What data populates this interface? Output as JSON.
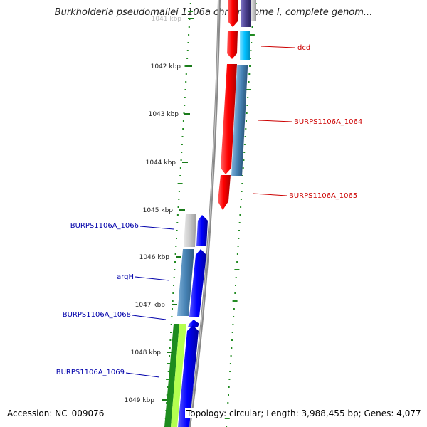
{
  "title": "Burkholderia pseudomallei 1106a chromosome I, complete genom...",
  "footer": {
    "accession": "Accession: NC_009076",
    "topology": "Topology: circular; Length: 3,988,455 bp; Genes: 4,077"
  },
  "ticks": [
    {
      "label": "1041 kbp"
    },
    {
      "label": "1042 kbp"
    },
    {
      "label": "1043 kbp"
    },
    {
      "label": "1044 kbp"
    },
    {
      "label": "1045 kbp"
    },
    {
      "label": "1046 kbp"
    },
    {
      "label": "1047 kbp"
    },
    {
      "label": "1048 kbp"
    },
    {
      "label": "1049 kbp"
    }
  ],
  "gene_labels": [
    {
      "name": "dcd",
      "color": "#cc0000"
    },
    {
      "name": "BURPS1106A_1064",
      "color": "#cc0000"
    },
    {
      "name": "BURPS1106A_1065",
      "color": "#cc0000"
    },
    {
      "name": "BURPS1106A_1066",
      "color": "#0000aa"
    },
    {
      "name": "argH",
      "color": "#0000aa"
    },
    {
      "name": "BURPS1106A_1068",
      "color": "#0000aa"
    },
    {
      "name": "BURPS1106A_1069",
      "color": "#0000aa"
    }
  ],
  "colors": {
    "forward_cds": "#ee0000",
    "reverse_cds": "#0000ee",
    "gene_blue": "#4682b4",
    "gene_cyan": "#00bfff",
    "gene_purple": "#483d8b",
    "gene_grey": "#c8c8c8",
    "gene_green": "#1e8c1e",
    "gene_lightgreen": "#b4ff50",
    "backbone": "#888888",
    "gc_dots": "#228b22"
  }
}
